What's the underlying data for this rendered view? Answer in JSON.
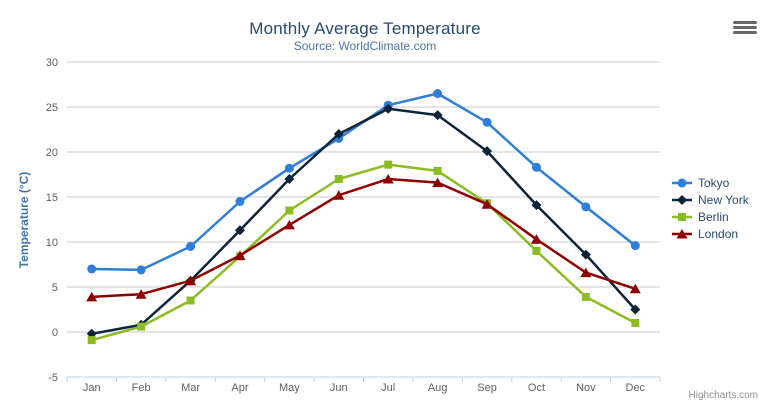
{
  "chart_data": {
    "type": "line",
    "title": "Monthly Average Temperature",
    "subtitle": "Source: WorldClimate.com",
    "xlabel": "",
    "ylabel": "Temperature (°C)",
    "categories": [
      "Jan",
      "Feb",
      "Mar",
      "Apr",
      "May",
      "Jun",
      "Jul",
      "Aug",
      "Sep",
      "Oct",
      "Nov",
      "Dec"
    ],
    "series": [
      {
        "name": "Tokyo",
        "color": "#2f7ed8",
        "marker": "circle",
        "values": [
          7.0,
          6.9,
          9.5,
          14.5,
          18.2,
          21.5,
          25.2,
          26.5,
          23.3,
          18.3,
          13.9,
          9.6
        ]
      },
      {
        "name": "New York",
        "color": "#0d233a",
        "marker": "diamond",
        "values": [
          -0.2,
          0.8,
          5.7,
          11.3,
          17.0,
          22.0,
          24.8,
          24.1,
          20.1,
          14.1,
          8.6,
          2.5
        ]
      },
      {
        "name": "Berlin",
        "color": "#8bbc21",
        "marker": "square",
        "values": [
          -0.9,
          0.6,
          3.5,
          8.4,
          13.5,
          17.0,
          18.6,
          17.9,
          14.3,
          9.0,
          3.9,
          1.0
        ]
      },
      {
        "name": "London",
        "color": "#910000",
        "marker": "triangle",
        "values": [
          3.9,
          4.2,
          5.7,
          8.5,
          11.9,
          15.2,
          17.0,
          16.6,
          14.2,
          10.3,
          6.6,
          4.8
        ]
      }
    ],
    "ylim": [
      -5,
      30
    ],
    "y_ticks": [
      -5,
      0,
      5,
      10,
      15,
      20,
      25,
      30
    ],
    "grid": true,
    "legend_position": "right"
  },
  "theme": {
    "title_color": "#274b6d",
    "subtitle_color": "#4d759e",
    "axis_label_color": "#606060",
    "y_axis_title_color": "#4572a7",
    "grid_color": "#c8c8c8",
    "axis_line_color": "#c0d0e0",
    "legend_text_color": "#274b6d",
    "credits_color": "#909090",
    "background": "#ffffff"
  },
  "ui": {
    "credits": "Highcharts.com",
    "export_menu_icon": "hamburger-icon"
  }
}
